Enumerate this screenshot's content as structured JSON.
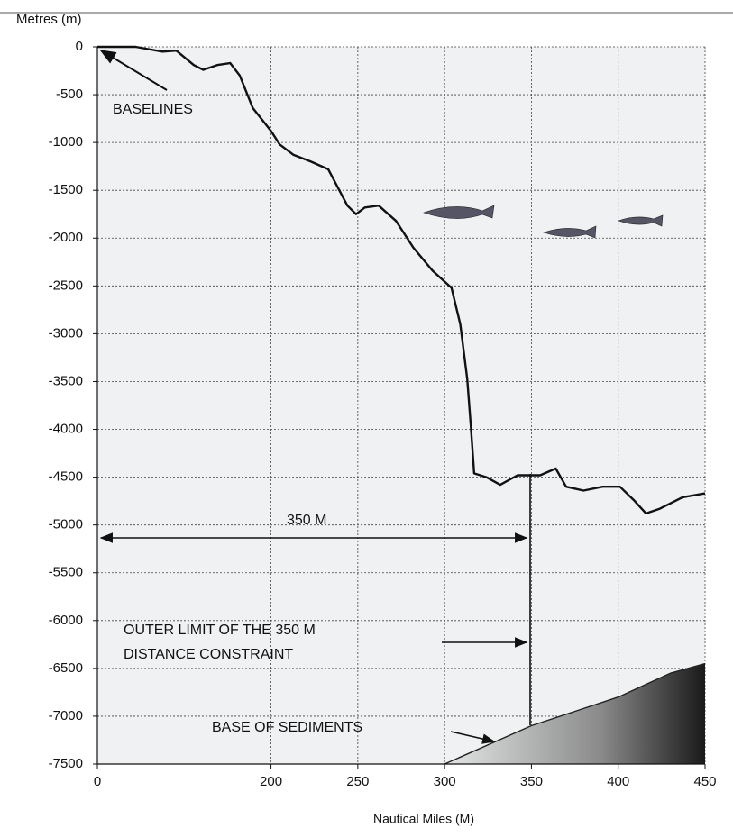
{
  "chart_data": {
    "type": "line",
    "y_axis_label": "Metres (m)",
    "x_axis_label": "Nautical Miles (M)",
    "xlim": [
      0,
      450
    ],
    "xticks": [
      0,
      200,
      250,
      300,
      350,
      400,
      450
    ],
    "ylim": [
      -7500,
      0
    ],
    "yticks": [
      0,
      -500,
      -1000,
      -1500,
      -2000,
      -2500,
      -3000,
      -3500,
      -4000,
      -4500,
      -5000,
      -5500,
      -6000,
      -6500,
      -7000,
      -7500
    ],
    "grid": true,
    "series": [
      {
        "color": "#111111",
        "x": [
          0,
          44,
          75,
          91,
          111,
          122,
          138,
          153,
          164,
          179,
          200,
          205,
          213,
          223,
          233,
          244,
          249,
          254,
          262,
          272,
          282,
          293,
          304,
          309,
          313,
          315,
          317,
          324,
          332,
          342,
          355,
          364,
          370,
          380,
          391,
          401,
          409,
          416,
          424,
          437,
          450
        ],
        "values": [
          0,
          0,
          -50,
          -40,
          -190,
          -240,
          -190,
          -170,
          -300,
          -640,
          -880,
          -1020,
          -1130,
          -1200,
          -1280,
          -1660,
          -1750,
          -1680,
          -1660,
          -1820,
          -2100,
          -2340,
          -2520,
          -2900,
          -3470,
          -3940,
          -4460,
          -4500,
          -4580,
          -4480,
          -4480,
          -4410,
          -4600,
          -4640,
          -4600,
          -4600,
          -4740,
          -4880,
          -4830,
          -4710,
          -4670
        ]
      },
      {
        "color": "#222222",
        "x": [
          300,
          350,
          400,
          430,
          450
        ],
        "values": [
          -7500,
          -7100,
          -6800,
          -6550,
          -6450
        ]
      }
    ],
    "annotations": [
      "BASELINES",
      "350 M",
      "OUTER LIMIT OF THE 350 M",
      "DISTANCE CONSTRAINT",
      "BASE OF SEDIMENTS"
    ]
  }
}
